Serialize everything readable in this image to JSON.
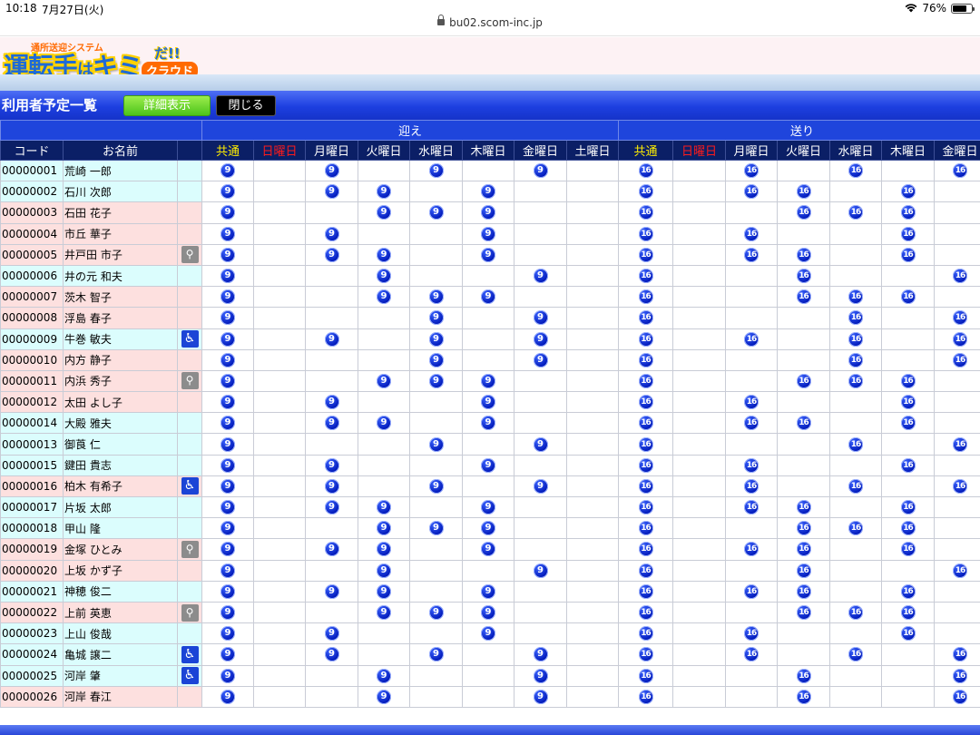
{
  "status_bar": {
    "time": "10:18",
    "date": "7月27日(火)",
    "url": "bu02.scom-inc.jp",
    "battery": "76%"
  },
  "logo": {
    "subtitle": "通所送迎システム",
    "main": "運転手",
    "ha": "は",
    "kimi": "キミ",
    "da": "だ!!",
    "cloud": "クラウド"
  },
  "toolbar": {
    "title": "利用者予定一覧",
    "detail_label": "詳細表示",
    "close_label": "閉じる"
  },
  "table": {
    "group_pickup": "迎え",
    "group_dropoff": "送り",
    "col_code": "コード",
    "col_name": "お名前",
    "pickup_cols": [
      "共通",
      "日曜日",
      "月曜日",
      "火曜日",
      "水曜日",
      "木曜日",
      "金曜日",
      "土曜日"
    ],
    "dropoff_cols": [
      "共通",
      "日曜日",
      "月曜日",
      "火曜日",
      "水曜日",
      "木曜日",
      "金曜日"
    ],
    "pickup_time": "9",
    "dropoff_time": "16",
    "rows": [
      {
        "code": "00000001",
        "name": "荒崎 一郎",
        "bg": "cyan",
        "flag": "",
        "pickup": [
          1,
          0,
          1,
          0,
          1,
          0,
          1,
          0
        ],
        "dropoff": [
          1,
          0,
          1,
          0,
          1,
          0,
          1
        ]
      },
      {
        "code": "00000002",
        "name": "石川 次郎",
        "bg": "cyan",
        "flag": "",
        "pickup": [
          1,
          0,
          1,
          1,
          0,
          1,
          0,
          0
        ],
        "dropoff": [
          1,
          0,
          1,
          1,
          0,
          1,
          0
        ]
      },
      {
        "code": "00000003",
        "name": "石田 花子",
        "bg": "pink",
        "flag": "",
        "pickup": [
          1,
          0,
          0,
          1,
          1,
          1,
          0,
          0
        ],
        "dropoff": [
          1,
          0,
          0,
          1,
          1,
          1,
          0
        ]
      },
      {
        "code": "00000004",
        "name": "市丘 華子",
        "bg": "pink",
        "flag": "",
        "pickup": [
          1,
          0,
          1,
          0,
          0,
          1,
          0,
          0
        ],
        "dropoff": [
          1,
          0,
          1,
          0,
          0,
          1,
          0
        ]
      },
      {
        "code": "00000005",
        "name": "井戸田 市子",
        "bg": "pink",
        "flag": "walker",
        "pickup": [
          1,
          0,
          1,
          1,
          0,
          1,
          0,
          0
        ],
        "dropoff": [
          1,
          0,
          1,
          1,
          0,
          1,
          0
        ]
      },
      {
        "code": "00000006",
        "name": "井の元 和夫",
        "bg": "cyan",
        "flag": "",
        "pickup": [
          1,
          0,
          0,
          1,
          0,
          0,
          1,
          0
        ],
        "dropoff": [
          1,
          0,
          0,
          1,
          0,
          0,
          1
        ]
      },
      {
        "code": "00000007",
        "name": "茨木 智子",
        "bg": "pink",
        "flag": "",
        "pickup": [
          1,
          0,
          0,
          1,
          1,
          1,
          0,
          0
        ],
        "dropoff": [
          1,
          0,
          0,
          1,
          1,
          1,
          0
        ]
      },
      {
        "code": "00000008",
        "name": "浮島 春子",
        "bg": "pink",
        "flag": "",
        "pickup": [
          1,
          0,
          0,
          0,
          1,
          0,
          1,
          0
        ],
        "dropoff": [
          1,
          0,
          0,
          0,
          1,
          0,
          1
        ]
      },
      {
        "code": "00000009",
        "name": "牛巻 敏夫",
        "bg": "cyan",
        "flag": "wheelchair",
        "pickup": [
          1,
          0,
          1,
          0,
          1,
          0,
          1,
          0
        ],
        "dropoff": [
          1,
          0,
          1,
          0,
          1,
          0,
          1
        ]
      },
      {
        "code": "00000010",
        "name": "内方 静子",
        "bg": "pink",
        "flag": "",
        "pickup": [
          1,
          0,
          0,
          0,
          1,
          0,
          1,
          0
        ],
        "dropoff": [
          1,
          0,
          0,
          0,
          1,
          0,
          1
        ]
      },
      {
        "code": "00000011",
        "name": "内浜 秀子",
        "bg": "pink",
        "flag": "walker",
        "pickup": [
          1,
          0,
          0,
          1,
          1,
          1,
          0,
          0
        ],
        "dropoff": [
          1,
          0,
          0,
          1,
          1,
          1,
          0
        ]
      },
      {
        "code": "00000012",
        "name": "太田 よし子",
        "bg": "pink",
        "flag": "",
        "pickup": [
          1,
          0,
          1,
          0,
          0,
          1,
          0,
          0
        ],
        "dropoff": [
          1,
          0,
          1,
          0,
          0,
          1,
          0
        ]
      },
      {
        "code": "00000014",
        "name": "大殿 雅夫",
        "bg": "cyan",
        "flag": "",
        "pickup": [
          1,
          0,
          1,
          1,
          0,
          1,
          0,
          0
        ],
        "dropoff": [
          1,
          0,
          1,
          1,
          0,
          1,
          0
        ]
      },
      {
        "code": "00000013",
        "name": "御莨 仁",
        "bg": "cyan",
        "flag": "",
        "pickup": [
          1,
          0,
          0,
          0,
          1,
          0,
          1,
          0
        ],
        "dropoff": [
          1,
          0,
          0,
          0,
          1,
          0,
          1
        ]
      },
      {
        "code": "00000015",
        "name": "鍵田 貴志",
        "bg": "cyan",
        "flag": "",
        "pickup": [
          1,
          0,
          1,
          0,
          0,
          1,
          0,
          0
        ],
        "dropoff": [
          1,
          0,
          1,
          0,
          0,
          1,
          0
        ]
      },
      {
        "code": "00000016",
        "name": "柏木 有希子",
        "bg": "pink",
        "flag": "wheelchair",
        "pickup": [
          1,
          0,
          1,
          0,
          1,
          0,
          1,
          0
        ],
        "dropoff": [
          1,
          0,
          1,
          0,
          1,
          0,
          1
        ]
      },
      {
        "code": "00000017",
        "name": "片坂 太郎",
        "bg": "cyan",
        "flag": "",
        "pickup": [
          1,
          0,
          1,
          1,
          0,
          1,
          0,
          0
        ],
        "dropoff": [
          1,
          0,
          1,
          1,
          0,
          1,
          0
        ]
      },
      {
        "code": "00000018",
        "name": "甲山 隆",
        "bg": "cyan",
        "flag": "",
        "pickup": [
          1,
          0,
          0,
          1,
          1,
          1,
          0,
          0
        ],
        "dropoff": [
          1,
          0,
          0,
          1,
          1,
          1,
          0
        ]
      },
      {
        "code": "00000019",
        "name": "金塚 ひとみ",
        "bg": "pink",
        "flag": "walker",
        "pickup": [
          1,
          0,
          1,
          1,
          0,
          1,
          0,
          0
        ],
        "dropoff": [
          1,
          0,
          1,
          1,
          0,
          1,
          0
        ]
      },
      {
        "code": "00000020",
        "name": "上坂 かず子",
        "bg": "pink",
        "flag": "",
        "pickup": [
          1,
          0,
          0,
          1,
          0,
          0,
          1,
          0
        ],
        "dropoff": [
          1,
          0,
          0,
          1,
          0,
          0,
          1
        ]
      },
      {
        "code": "00000021",
        "name": "神穂 俊二",
        "bg": "cyan",
        "flag": "",
        "pickup": [
          1,
          0,
          1,
          1,
          0,
          1,
          0,
          0
        ],
        "dropoff": [
          1,
          0,
          1,
          1,
          0,
          1,
          0
        ]
      },
      {
        "code": "00000022",
        "name": "上前 英恵",
        "bg": "pink",
        "flag": "walker",
        "pickup": [
          1,
          0,
          0,
          1,
          1,
          1,
          0,
          0
        ],
        "dropoff": [
          1,
          0,
          0,
          1,
          1,
          1,
          0
        ]
      },
      {
        "code": "00000023",
        "name": "上山 俊哉",
        "bg": "cyan",
        "flag": "",
        "pickup": [
          1,
          0,
          1,
          0,
          0,
          1,
          0,
          0
        ],
        "dropoff": [
          1,
          0,
          1,
          0,
          0,
          1,
          0
        ]
      },
      {
        "code": "00000024",
        "name": "亀城 譲二",
        "bg": "cyan",
        "flag": "wheelchair",
        "pickup": [
          1,
          0,
          1,
          0,
          1,
          0,
          1,
          0
        ],
        "dropoff": [
          1,
          0,
          1,
          0,
          1,
          0,
          1
        ]
      },
      {
        "code": "00000025",
        "name": "河岸 肇",
        "bg": "cyan",
        "flag": "wheelchair",
        "pickup": [
          1,
          0,
          0,
          1,
          0,
          0,
          1,
          0
        ],
        "dropoff": [
          1,
          0,
          0,
          1,
          0,
          0,
          1
        ]
      },
      {
        "code": "00000026",
        "name": "河岸 春江",
        "bg": "pink",
        "flag": "",
        "pickup": [
          1,
          0,
          0,
          1,
          0,
          0,
          1,
          0
        ],
        "dropoff": [
          1,
          0,
          0,
          1,
          0,
          0,
          1
        ]
      }
    ]
  },
  "colors": {
    "header_blue": "#1f45dc",
    "header_navy": "#0b1f66",
    "common_yellow": "#ffee00",
    "sunday_red": "#ff1b1b",
    "row_cyan": "#dbfdfd",
    "row_pink": "#fde0df",
    "detail_green": "#5ccc22"
  }
}
